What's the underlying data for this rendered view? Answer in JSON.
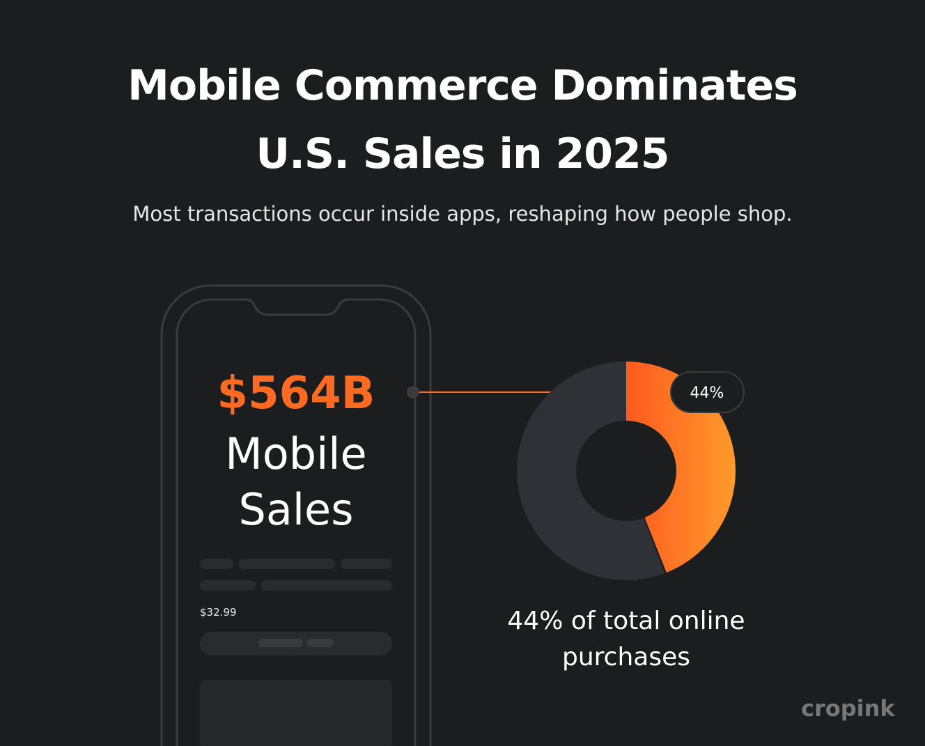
{
  "header": {
    "title": [
      "Mobile Commerce Dominates",
      "U.S. Sales in 2025"
    ],
    "subtitle": "Most transactions occur inside apps, reshaping how people shop."
  },
  "phone": {
    "amount": "$564B",
    "label": "Mobile Sales",
    "price": "$32.99"
  },
  "chart_data": {
    "type": "donut",
    "values": [
      44,
      56
    ],
    "value_labels": [
      "44%",
      null
    ],
    "colors": [
      [
        "#ff5a1f",
        "#ff9a2a"
      ],
      "#2e3135"
    ],
    "caption": "44% of total online purchases"
  },
  "watermark": "cropink"
}
